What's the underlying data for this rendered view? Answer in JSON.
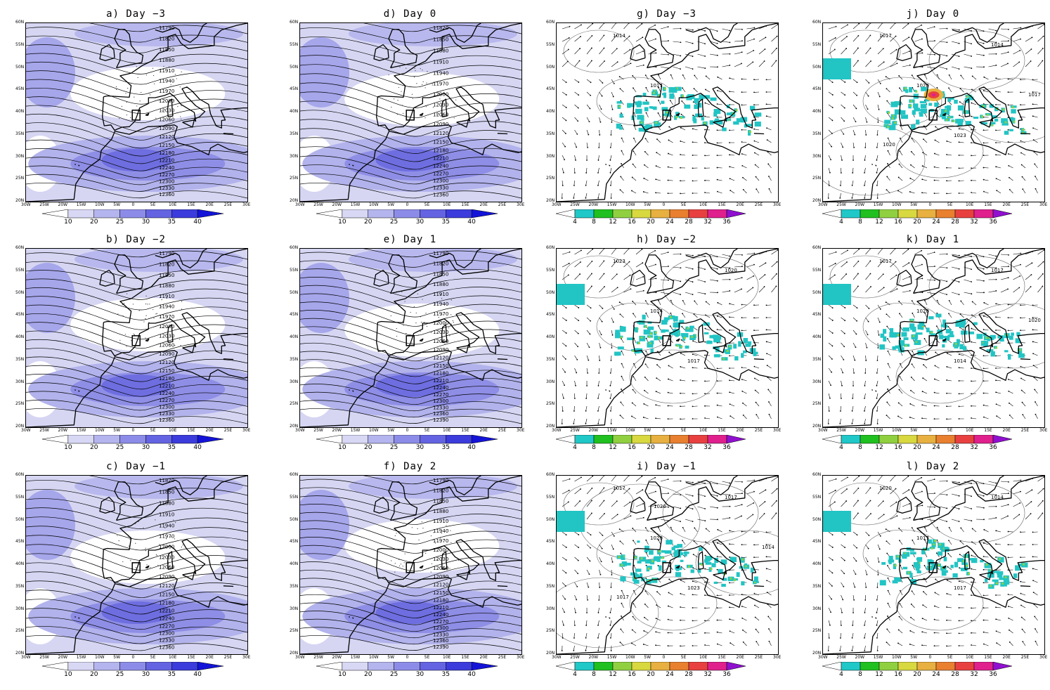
{
  "panels": [
    {
      "id": "a",
      "title": "a) Day −3",
      "kind": "z500",
      "contours": [
        "11790",
        "11820",
        "11850",
        "11880",
        "11910",
        "11940",
        "11970",
        "12000",
        "12030",
        "12060",
        "12090",
        "12120",
        "12150",
        "12180",
        "12210",
        "12240",
        "12270",
        "12300",
        "12330",
        "12360"
      ]
    },
    {
      "id": "d",
      "title": "d) Day 0",
      "kind": "z500",
      "contours": [
        "11820",
        "11850",
        "11880",
        "11910",
        "11940",
        "11970",
        "12000",
        "12030",
        "12060",
        "12090",
        "12120",
        "12150",
        "12180",
        "12210",
        "12240",
        "12270",
        "12300",
        "12330",
        "12360"
      ]
    },
    {
      "id": "g",
      "title": "g) Day −3",
      "kind": "precip",
      "isobars": [
        "1014",
        "1017"
      ]
    },
    {
      "id": "j",
      "title": "j) Day 0",
      "kind": "precip",
      "isobars": [
        "1017",
        "1020",
        "1023",
        "1014",
        "1017",
        "1020"
      ]
    },
    {
      "id": "b",
      "title": "b) Day −2",
      "kind": "z500",
      "contours": [
        "11790",
        "11820",
        "11850",
        "11880",
        "11910",
        "11940",
        "11970",
        "12000",
        "12030",
        "12060",
        "12090",
        "12120",
        "12150",
        "12180",
        "12210",
        "12240",
        "12270",
        "12300",
        "12330",
        "12360"
      ]
    },
    {
      "id": "e",
      "title": "e) Day 1",
      "kind": "z500",
      "contours": [
        "11790",
        "11820",
        "11850",
        "11880",
        "11910",
        "11940",
        "11970",
        "12000",
        "12030",
        "12060",
        "12090",
        "12120",
        "12150",
        "12180",
        "12210",
        "12240",
        "12270",
        "12300",
        "12330",
        "12360",
        "12390"
      ]
    },
    {
      "id": "h",
      "title": "h) Day −2",
      "kind": "precip",
      "isobars": [
        "1023",
        "1014",
        "1017",
        "1020"
      ]
    },
    {
      "id": "k",
      "title": "k) Day 1",
      "kind": "precip",
      "isobars": [
        "1017",
        "1020",
        "1014",
        "1017",
        "1020"
      ]
    },
    {
      "id": "c",
      "title": "c) Day −1",
      "kind": "z500",
      "contours": [
        "11820",
        "11850",
        "11880",
        "11910",
        "11940",
        "11970",
        "12000",
        "12030",
        "12060",
        "12090",
        "12120",
        "12150",
        "12180",
        "12210",
        "12240",
        "12270",
        "12300",
        "12330",
        "12360"
      ]
    },
    {
      "id": "f",
      "title": "f) Day 2",
      "kind": "z500",
      "contours": [
        "11790",
        "11820",
        "11850",
        "11880",
        "11910",
        "11940",
        "11970",
        "12000",
        "12030",
        "12060",
        "12090",
        "12120",
        "12150",
        "12180",
        "12210",
        "12240",
        "12270",
        "12300",
        "12330",
        "12360",
        "12390"
      ]
    },
    {
      "id": "i",
      "title": "i) Day −1",
      "kind": "precip",
      "isobars": [
        "1017",
        "1020",
        "1023",
        "1017",
        "1014",
        "1017",
        "1020"
      ]
    },
    {
      "id": "l",
      "title": "l) Day 2",
      "kind": "precip",
      "isobars": [
        "1020",
        "1017",
        "1017",
        "1014"
      ]
    }
  ],
  "lon_ticks": [
    "30W",
    "25W",
    "20W",
    "15W",
    "10W",
    "5W",
    "0",
    "5E",
    "10E",
    "15E",
    "20E",
    "25E",
    "30E"
  ],
  "lat_ticks": [
    "60N",
    "55N",
    "50N",
    "45N",
    "40N",
    "35N",
    "30N",
    "25N",
    "20N"
  ],
  "colorbar_wind": {
    "labels": [
      "10",
      "20",
      "25",
      "30",
      "35",
      "40"
    ],
    "colors": [
      "#ffffff",
      "#d8d8f5",
      "#b4b4ee",
      "#8c8ce8",
      "#6464e2",
      "#3c3cdc",
      "#1414d8"
    ]
  },
  "colorbar_precip": {
    "labels": [
      "4",
      "8",
      "12",
      "16",
      "20",
      "24",
      "28",
      "32",
      "36"
    ],
    "colors": [
      "#ffffff",
      "#20c8c8",
      "#20c020",
      "#90d040",
      "#d8d840",
      "#e8b040",
      "#e88030",
      "#e84040",
      "#e0208c",
      "#9010d0"
    ]
  }
}
